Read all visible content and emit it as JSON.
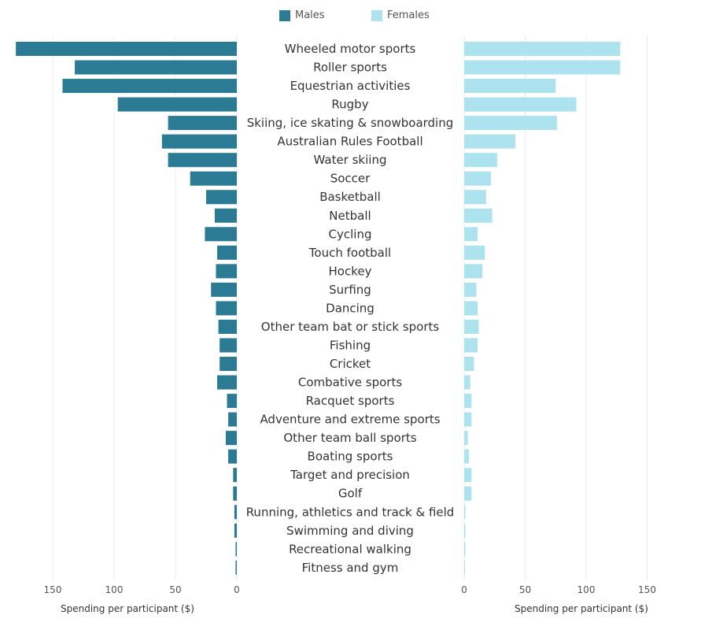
{
  "chart_data": {
    "type": "bar",
    "legend": {
      "placement": "top-center"
    },
    "series": [
      {
        "name": "Males",
        "color": "#2a7b93",
        "values": [
          180,
          132,
          142,
          97,
          56,
          61,
          56,
          38,
          25,
          18,
          26,
          16,
          17,
          21,
          17,
          15,
          14,
          14,
          16,
          8,
          7,
          9,
          7,
          3,
          3,
          2,
          2,
          1,
          1
        ]
      },
      {
        "name": "Females",
        "color": "#ade3ee",
        "values": [
          128,
          128,
          75,
          92,
          76,
          42,
          27,
          22,
          18,
          23,
          11,
          17,
          15,
          10,
          11,
          12,
          11,
          8,
          5,
          6,
          6,
          3,
          4,
          6,
          6,
          1,
          1,
          1,
          0
        ]
      }
    ],
    "categories": [
      "Wheeled motor sports",
      "Roller sports",
      "Equestrian activities",
      "Rugby",
      "Skiing, ice skating & snowboarding",
      "Australian Rules Football",
      "Water skiing",
      "Soccer",
      "Basketball",
      "Netball",
      "Cycling",
      "Touch football",
      "Hockey",
      "Surfing",
      "Dancing",
      "Other team bat or stick sports",
      "Fishing",
      "Cricket",
      "Combative sports",
      "Racquet sports",
      "Adventure and extreme sports",
      "Other team ball sports",
      "Boating sports",
      "Target and precision",
      "Golf",
      "Running, athletics and track & field",
      "Swimming and diving",
      "Recreational walking",
      "Fitness and gym"
    ],
    "left_axis": {
      "label": "Spending per participant ($)",
      "ticks": [
        "150",
        "100",
        "50",
        "0"
      ],
      "tick_values": [
        150,
        100,
        50,
        0
      ],
      "xlim": [
        0,
        175
      ]
    },
    "right_axis": {
      "label": "Spending per participant ($)",
      "ticks": [
        "0",
        "50",
        "100",
        "150"
      ],
      "tick_values": [
        0,
        50,
        100,
        150
      ],
      "xlim": [
        0,
        155
      ]
    },
    "grid": true
  }
}
